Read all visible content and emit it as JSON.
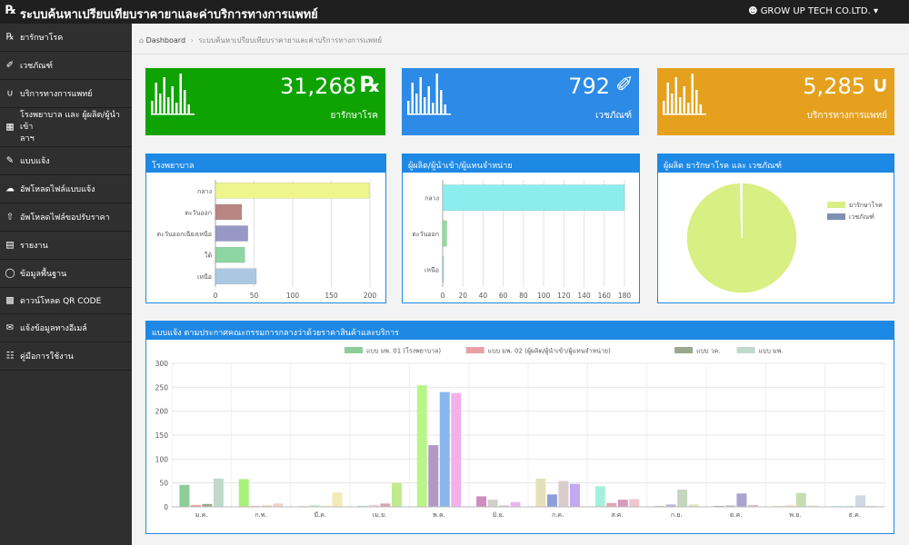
{
  "app": {
    "title": "ระบบค้นหาเปรียบเทียบราคายาและค่าบริการทางการแพทย์",
    "user": "GROW UP TECH CO.LTD."
  },
  "sidebar": {
    "items": [
      {
        "label": "ยารักษาโรค",
        "icon": "rx-icon"
      },
      {
        "label": "เวชภัณฑ์",
        "icon": "syringe-icon"
      },
      {
        "label": "บริการทางการแพทย์",
        "icon": "stethoscope-icon"
      },
      {
        "label": "โรงพยาบาล และ ผู้ผลิต/ผู้นำเข้า/ผู้แทนจำหน่าย",
        "label_line1": "โรงพยาบาล และ ผู้ผลิต/ผู้นำเข้า",
        "label_line2": "ลาฯ",
        "icon": "building-icon"
      },
      {
        "label": "แบบแจ้ง",
        "icon": "edit-icon"
      },
      {
        "label": "อัพโหลดไฟล์แบบแจ้ง",
        "icon": "cloud-upload-icon"
      },
      {
        "label": "อัพโหลดไฟล์ขอปรับราคา",
        "icon": "upload-icon"
      },
      {
        "label": "รายงาน",
        "icon": "report-icon"
      },
      {
        "label": "ข้อมูลพื้นฐาน",
        "icon": "database-icon"
      },
      {
        "label": "ดาวน์โหลด QR CODE",
        "icon": "qrcode-icon"
      },
      {
        "label": "แจ้งข้อมูลทางอีเมล์",
        "icon": "email-icon"
      },
      {
        "label": "คู่มือการใช้งาน",
        "icon": "manual-icon"
      }
    ]
  },
  "breadcrumb": {
    "home": "Dashboard",
    "current": "ระบบค้นหาเปรียบเทียบราคายาและค่าบริการทางการแพทย์"
  },
  "stats": [
    {
      "value": "31,268",
      "label": "ยารักษาโรค",
      "icon": "rx-icon",
      "color": "#0ea300"
    },
    {
      "value": "792",
      "label": "เวชภัณฑ์",
      "icon": "syringe-icon",
      "color": "#2d8ae6"
    },
    {
      "value": "5,285",
      "label": "บริการทางการแพทย์",
      "icon": "stethoscope-icon",
      "color": "#e5a11e"
    }
  ],
  "chart_data": [
    {
      "type": "bar",
      "orientation": "horizontal",
      "title": "โรงพยาบาล",
      "categories": [
        "กลาง",
        "ตะวันออก",
        "ตะวันออกเฉียงเหนือ",
        "ใต้",
        "เหนือ"
      ],
      "values": [
        199,
        34,
        42,
        38,
        53
      ],
      "colors": [
        "#eef58c",
        "#b98684",
        "#9898c6",
        "#8dd6a3",
        "#abc8e3"
      ],
      "xlim": [
        0,
        200
      ],
      "xticks": [
        "0",
        "50",
        "100",
        "150",
        "200"
      ]
    },
    {
      "type": "bar",
      "orientation": "horizontal",
      "title": "ผู้ผลิต/ผู้นำเข้า/ผู้แทนจำหน่าย",
      "categories": [
        "กลาง",
        "ตะวันออก",
        "เหนือ"
      ],
      "values": [
        180,
        4,
        1
      ],
      "colors": [
        "#8cedef",
        "#8de09a",
        "#9ad7e8"
      ],
      "xlim": [
        0,
        180
      ],
      "xticks": [
        "0",
        "20",
        "40",
        "60",
        "80",
        "100",
        "120",
        "140",
        "160",
        "180"
      ]
    },
    {
      "type": "pie",
      "title": "ผู้ผลิต ยารักษาโรค และ เวชภัณฑ์",
      "slices": [
        {
          "name": "ยารักษาโรค",
          "value": 99.7,
          "color": "#d8ef84"
        },
        {
          "name": "เวชภัณฑ์",
          "value": 0.3,
          "color": "#7d8fb3"
        }
      ],
      "legend": "right"
    },
    {
      "type": "bar",
      "title": "แบบแจ้ง ตามประกาศคณะกรรมการกลางว่าด้วยราคาสินค้าและบริการ",
      "categories": [
        "ม.ค.",
        "ก.พ.",
        "มี.ค.",
        "เม.ย.",
        "พ.ค.",
        "มิ.ย.",
        "ก.ค.",
        "ส.ค.",
        "ก.ย.",
        "ต.ค.",
        "พ.ย.",
        "ธ.ค."
      ],
      "series": [
        {
          "name": "แบบ มพ. 01 (โรงพยาบาล)",
          "values": [
            46,
            58,
            2,
            2,
            254,
            22,
            59,
            43,
            2,
            2,
            2,
            2
          ],
          "color": "#2e8b2e"
        },
        {
          "name": "แบบ มพ. 02 (ผู้ผลิต/ผู้นำเข้า/ผู้แทนจำหน่าย)",
          "values": [
            4,
            2,
            4,
            4,
            129,
            15,
            26,
            8,
            5,
            3,
            3,
            2
          ],
          "color": "#c0151b"
        },
        {
          "name": "แบบ วค.",
          "values": [
            6,
            3,
            3,
            7,
            240,
            3,
            54,
            15,
            36,
            28,
            29,
            24
          ],
          "color": "#2b5d1e"
        },
        {
          "name": "แบบ มพ.",
          "values": [
            59,
            7,
            30,
            50,
            238,
            10,
            48,
            16,
            5,
            4,
            3,
            2
          ],
          "color": "#6ab38a"
        }
      ],
      "legend": "top",
      "ylim": [
        0,
        300
      ],
      "yticks": [
        "0",
        "50",
        "100",
        "150",
        "200",
        "250",
        "300"
      ]
    }
  ],
  "monthly_bar_colors": [
    [
      "#8ccd98",
      "#e8a0a4",
      "#9aa78d",
      "#c0d9cd"
    ],
    [
      "#a7f27a",
      "#f0b8b0",
      "#dbd1a6",
      "#f0d2c9"
    ],
    [
      "#c7edd0",
      "#c9f0d1",
      "#f2f2bf",
      "#f5e9b5"
    ],
    [
      "#9fd0ed",
      "#f2d0d8",
      "#d5a5b8",
      "#c1ea8f"
    ],
    [
      "#b7f589",
      "#b497c5",
      "#87b7ec",
      "#f4b0ea"
    ],
    [
      "#cf8ebf",
      "#cfd0cb",
      "#c8c6d1",
      "#e9b6ee"
    ],
    [
      "#e4e0b8",
      "#8e9fd8",
      "#d9cdcb",
      "#c3a8f2"
    ],
    [
      "#a5f0db",
      "#e2a5b8",
      "#d79bb7",
      "#f0c4d0"
    ],
    [
      "#d6bea3",
      "#b7b4d9",
      "#c7d6bf",
      "#e7e0b9"
    ],
    [
      "#aca9ab",
      "#c3b9d6",
      "#a9a3d0",
      "#d5c4ca"
    ],
    [
      "#d8f39d",
      "#f1d8b8",
      "#c8dcb4",
      "#e9e2c8"
    ],
    [
      "#acefef",
      "#c9ebf8",
      "#cfd8e3",
      "#e0d4c3"
    ]
  ]
}
